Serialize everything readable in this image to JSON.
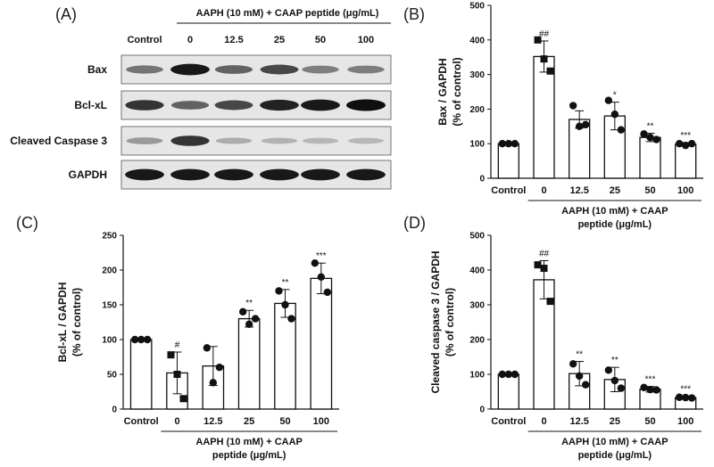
{
  "figure": {
    "panel_letters": [
      "(A)",
      "(B)",
      "(C)",
      "(D)"
    ],
    "colors": {
      "ink": "#111111",
      "bar_fill": "#ffffff",
      "band": "#1a1a1a",
      "blot_bg": "#e6e6e6"
    }
  },
  "western_blot": {
    "treatment_header": "AAPH (10 mM) + CAAP peptide (μg/mL)",
    "columns": [
      "Control",
      "0",
      "12.5",
      "25",
      "50",
      "100"
    ],
    "rows": [
      {
        "label": "Bax",
        "intensity": [
          0.45,
          0.95,
          0.55,
          0.7,
          0.4,
          0.4
        ]
      },
      {
        "label": "Bcl-xL",
        "intensity": [
          0.8,
          0.55,
          0.7,
          0.9,
          0.95,
          1.0
        ]
      },
      {
        "label": "Cleaved Caspase 3",
        "intensity": [
          0.25,
          0.8,
          0.15,
          0.12,
          0.1,
          0.1
        ]
      },
      {
        "label": "GAPDH",
        "intensity": [
          0.95,
          0.95,
          0.95,
          0.95,
          0.95,
          0.95
        ]
      }
    ]
  },
  "chart_data": [
    {
      "id": "B",
      "type": "bar",
      "title": "",
      "ylabel": [
        "Bax / GAPDH",
        "(% of control)"
      ],
      "xlabel": "",
      "group_label": [
        "AAPH (10 mM) + CAAP",
        "peptide (μg/mL)"
      ],
      "categories": [
        "Control",
        "0",
        "12.5",
        "25",
        "50",
        "100"
      ],
      "values": [
        100,
        352,
        170,
        180,
        118,
        98
      ],
      "errors": [
        0,
        45,
        25,
        40,
        12,
        5
      ],
      "points": [
        [
          100,
          100,
          100
        ],
        [
          400,
          345,
          310
        ],
        [
          210,
          150,
          155
        ],
        [
          225,
          185,
          140
        ],
        [
          128,
          118,
          112
        ],
        [
          100,
          95,
          100
        ]
      ],
      "significance": [
        "",
        "##",
        "",
        "*",
        "**",
        "***"
      ],
      "ylim": [
        0,
        500
      ],
      "yticks": [
        0,
        100,
        200,
        300,
        400,
        500
      ]
    },
    {
      "id": "C",
      "type": "bar",
      "title": "",
      "ylabel": [
        "Bcl-xL / GAPDH",
        "(% of control)"
      ],
      "xlabel": "",
      "group_label": [
        "AAPH (10 mM) + CAAP",
        "peptide (μg/mL)"
      ],
      "categories": [
        "Control",
        "0",
        "12.5",
        "25",
        "50",
        "100"
      ],
      "values": [
        100,
        52,
        62,
        130,
        152,
        188
      ],
      "errors": [
        0,
        30,
        28,
        12,
        20,
        22
      ],
      "points": [
        [
          100,
          100,
          100
        ],
        [
          78,
          50,
          15
        ],
        [
          88,
          38,
          60
        ],
        [
          140,
          122,
          130
        ],
        [
          170,
          150,
          130
        ],
        [
          210,
          190,
          168
        ]
      ],
      "significance": [
        "",
        "#",
        "",
        "**",
        "**",
        "***"
      ],
      "ylim": [
        0,
        250
      ],
      "yticks": [
        0,
        50,
        100,
        150,
        200,
        250
      ]
    },
    {
      "id": "D",
      "type": "bar",
      "title": "",
      "ylabel": [
        "Cleaved caspase 3 / GAPDH",
        "(% of control)"
      ],
      "xlabel": "",
      "group_label": [
        "AAPH (10 mM) + CAAP",
        "peptide (μg/mL)"
      ],
      "categories": [
        "Control",
        "0",
        "12.5",
        "25",
        "50",
        "100"
      ],
      "values": [
        100,
        372,
        102,
        85,
        57,
        33
      ],
      "errors": [
        0,
        55,
        35,
        35,
        8,
        4
      ],
      "points": [
        [
          100,
          100,
          100
        ],
        [
          415,
          405,
          310
        ],
        [
          130,
          95,
          70
        ],
        [
          112,
          82,
          60
        ],
        [
          62,
          56,
          55
        ],
        [
          34,
          33,
          32
        ]
      ],
      "significance": [
        "",
        "##",
        "**",
        "**",
        "***",
        "***"
      ],
      "ylim": [
        0,
        500
      ],
      "yticks": [
        0,
        100,
        200,
        300,
        400,
        500
      ]
    }
  ]
}
